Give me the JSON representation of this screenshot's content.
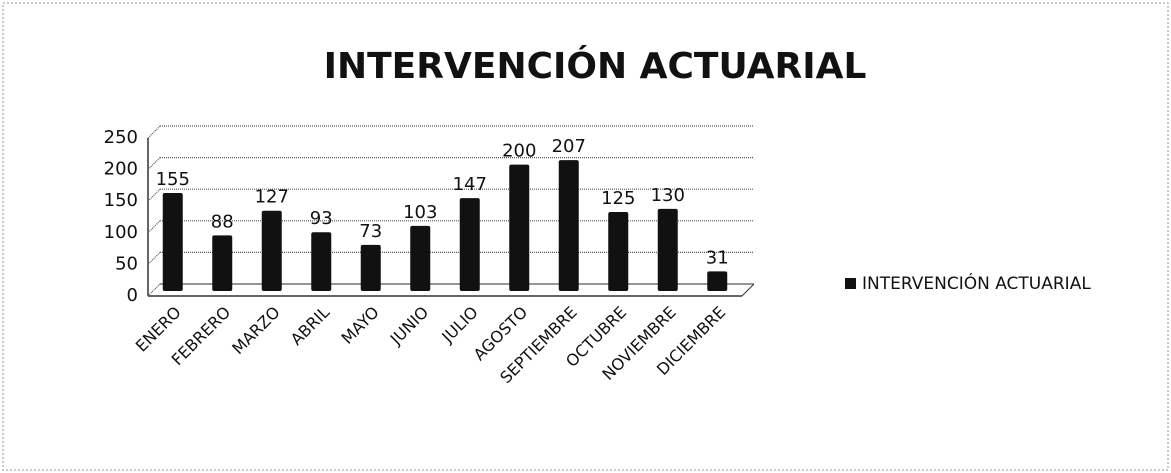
{
  "chart_data": {
    "type": "bar",
    "title": "INTERVENCIÓN ACTUARIAL",
    "categories": [
      "ENERO",
      "FEBRERO",
      "MARZO",
      "ABRIL",
      "MAYO",
      "JUNIO",
      "JULIO",
      "AGOSTO",
      "SEPTIEMBRE",
      "OCTUBRE",
      "NOVIEMBRE",
      "DICIEMBRE"
    ],
    "series": [
      {
        "name": "INTERVENCIÓN ACTUARIAL",
        "color": "#111111",
        "values": [
          155,
          88,
          127,
          93,
          73,
          103,
          147,
          200,
          207,
          125,
          130,
          31
        ]
      }
    ],
    "ylim": [
      0,
      250
    ],
    "yticks": [
      0,
      50,
      100,
      150,
      200,
      250
    ],
    "grid": true,
    "legend": "right"
  }
}
